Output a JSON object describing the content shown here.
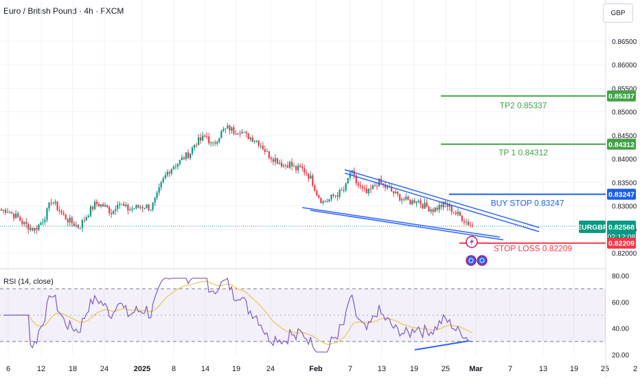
{
  "header": {
    "title": "Euro / British Pound · 4h · FXCM"
  },
  "currency_button": "GBP",
  "rsi_label": "RSI (14, close)",
  "symbol_label": "EURGBP",
  "countdown": "02:12:08",
  "colors": {
    "up": "#089981",
    "down": "#f23645",
    "tp": "#43a047",
    "buy": "#1e5ee6",
    "stop": "#f23645",
    "rsi": "#7e57c2",
    "rsi_ma": "#e8c650",
    "trend": "#2962ff",
    "price_badge": "#089981"
  },
  "levels": {
    "tp2": {
      "value": 0.85337,
      "label": "TP2 0.85337",
      "badge": "0.85337"
    },
    "tp1": {
      "value": 0.84312,
      "label": "TP 1 0.84312",
      "badge": "0.84312"
    },
    "buy_stop": {
      "value": 0.83247,
      "label": "BUY STOP 0.83247",
      "badge": "0.83247"
    },
    "stop_loss": {
      "value": 0.82209,
      "label": "STOP LOSS 0.82209",
      "badge": "0.82209"
    },
    "current": {
      "value": 0.82568,
      "badge": "0.82568"
    }
  },
  "chart_data": [
    {
      "type": "candlestick",
      "title": "Euro / British Pound · 4h · FXCM",
      "y_ticks": [
        "0.86500",
        "0.86000",
        "0.85500",
        "0.85000",
        "0.84500",
        "0.84000",
        "0.83500",
        "0.83000",
        "0.82500",
        "0.82000"
      ],
      "y_tick_values": [
        0.865,
        0.86,
        0.855,
        0.85,
        0.845,
        0.84,
        0.835,
        0.83,
        0.825,
        0.82
      ],
      "ylim": [
        0.8168,
        0.8683
      ],
      "x_ticks": [
        "6",
        "12",
        "18",
        "24",
        "2025",
        "8",
        "14",
        "19",
        "24",
        "Feb",
        "7",
        "13",
        "19",
        "25",
        "Mar",
        "7",
        "13",
        "19",
        "25",
        "2"
      ],
      "x_bold": [
        "2025",
        "Feb",
        "Mar"
      ],
      "close_path": [
        0.829,
        0.8292,
        0.8282,
        0.8275,
        0.8262,
        0.8255,
        0.825,
        0.8262,
        0.828,
        0.8312,
        0.8298,
        0.8282,
        0.827,
        0.8262,
        0.8255,
        0.8272,
        0.829,
        0.8305,
        0.8302,
        0.8296,
        0.8285,
        0.831,
        0.8298,
        0.8292,
        0.8296,
        0.8298,
        0.83,
        0.8295,
        0.8318,
        0.835,
        0.8372,
        0.8385,
        0.8392,
        0.8404,
        0.8412,
        0.8435,
        0.844,
        0.845,
        0.8425,
        0.8445,
        0.846,
        0.8466,
        0.8458,
        0.8462,
        0.845,
        0.8445,
        0.844,
        0.8428,
        0.841,
        0.8402,
        0.8395,
        0.8386,
        0.839,
        0.8378,
        0.838,
        0.8372,
        0.8355,
        0.8325,
        0.8308,
        0.8312,
        0.8322,
        0.8327,
        0.8335,
        0.8375,
        0.835,
        0.8335,
        0.8325,
        0.8338,
        0.8352,
        0.8342,
        0.8335,
        0.8325,
        0.8318,
        0.8312,
        0.8308,
        0.8314,
        0.8302,
        0.8296,
        0.8292,
        0.8298,
        0.8304,
        0.8295,
        0.8284,
        0.8276,
        0.8265,
        0.8257
      ],
      "rsi": {
        "label": "RSI (14, close)",
        "y_ticks": [
          "80.00",
          "60.00",
          "40.00",
          "20.00"
        ],
        "y_tick_values": [
          80,
          60,
          40,
          20
        ],
        "bands": [
          70,
          50,
          30
        ],
        "ylim": [
          17,
          83
        ]
      }
    }
  ]
}
